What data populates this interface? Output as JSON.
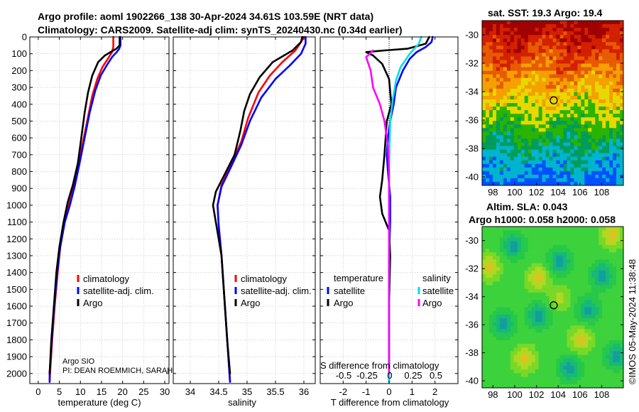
{
  "header": {
    "line1": "Argo profile: aoml 1902266_138 30-Apr-2024 34.61S 103.59E (NRT data)",
    "line2": "Climatology: CARS2009. Satellite-adj clim: synTS_20240430.nc (0.34d earlier)"
  },
  "right_titles": {
    "sst": "sat. SST: 19.3 Argo: 19.4",
    "sla1": "Altim. SLA: 0.043",
    "sla2": "Argo h1000: 0.058 h2000: 0.058"
  },
  "credit": "©IMOS 05-May-2024 11:38:48",
  "notes": {
    "pi1": "Argo SIO",
    "pi2": "PI: DEAN ROEMMICH, SARAH"
  },
  "colors": {
    "argo": "#000000",
    "clim": "#ff0000",
    "satclim": "#0000ff",
    "tsat": "#00e0e0",
    "targo": "#ff00ff",
    "grid": "#bfbfbf"
  },
  "chart_data": [
    {
      "id": "temperature",
      "type": "line",
      "xlabel": "temperature (deg C)",
      "ylabel": "",
      "xlim": [
        -2,
        31
      ],
      "ylim": [
        2060,
        0
      ],
      "xticks": [
        0,
        5,
        10,
        15,
        20,
        25,
        30
      ],
      "yticks": [
        0,
        100,
        200,
        300,
        400,
        500,
        600,
        700,
        800,
        900,
        1000,
        1100,
        1200,
        1300,
        1400,
        1500,
        1600,
        1700,
        1800,
        1900,
        2000
      ],
      "legend": [
        "climatology",
        "satellite-adj. clim.",
        "Argo"
      ],
      "series": [
        {
          "name": "climatology",
          "color": "#ff0000",
          "points": [
            [
              17.8,
              0
            ],
            [
              17.8,
              60
            ],
            [
              17.5,
              90
            ],
            [
              16.5,
              130
            ],
            [
              15.2,
              180
            ],
            [
              14.0,
              250
            ],
            [
              12.8,
              350
            ],
            [
              11.6,
              500
            ],
            [
              10.4,
              650
            ],
            [
              9.2,
              800
            ],
            [
              7.8,
              950
            ],
            [
              6.6,
              1050
            ],
            [
              5.4,
              1200
            ],
            [
              4.6,
              1400
            ],
            [
              3.9,
              1600
            ],
            [
              3.3,
              1800
            ],
            [
              2.8,
              2000
            ],
            [
              2.7,
              2050
            ]
          ]
        },
        {
          "name": "satellite-adj. clim.",
          "color": "#0000ff",
          "points": [
            [
              19.5,
              0
            ],
            [
              19.5,
              50
            ],
            [
              19.2,
              70
            ],
            [
              18.6,
              90
            ],
            [
              17.5,
              120
            ],
            [
              16.2,
              170
            ],
            [
              14.8,
              230
            ],
            [
              13.5,
              320
            ],
            [
              12.2,
              450
            ],
            [
              11.0,
              600
            ],
            [
              9.8,
              750
            ],
            [
              8.7,
              880
            ],
            [
              7.5,
              1000
            ],
            [
              6.3,
              1100
            ],
            [
              5.2,
              1250
            ],
            [
              4.5,
              1400
            ],
            [
              3.8,
              1600
            ],
            [
              3.2,
              1800
            ],
            [
              2.7,
              2000
            ],
            [
              2.7,
              2050
            ]
          ]
        },
        {
          "name": "Argo",
          "color": "#000000",
          "points": [
            [
              19.3,
              0
            ],
            [
              19.3,
              50
            ],
            [
              18.5,
              70
            ],
            [
              17.5,
              85
            ],
            [
              15.8,
              110
            ],
            [
              14.2,
              150
            ],
            [
              12.8,
              230
            ],
            [
              11.8,
              330
            ],
            [
              11.0,
              450
            ],
            [
              10.2,
              600
            ],
            [
              9.4,
              750
            ],
            [
              8.2,
              880
            ],
            [
              7.0,
              980
            ],
            [
              6.0,
              1100
            ],
            [
              5.0,
              1250
            ],
            [
              4.3,
              1400
            ],
            [
              3.7,
              1600
            ],
            [
              3.1,
              1800
            ],
            [
              2.7,
              2000
            ]
          ]
        }
      ]
    },
    {
      "id": "salinity",
      "type": "line",
      "xlabel": "salinity",
      "ylabel": "",
      "xlim": [
        33.7,
        36.2
      ],
      "ylim": [
        2060,
        0
      ],
      "xticks": [
        34,
        34.5,
        35,
        35.5,
        36
      ],
      "xticklabels": [
        "34",
        "34.5",
        "35",
        "35.5",
        "36"
      ],
      "legend": [
        "climatology",
        "satellite-adj. clim.",
        "Argo"
      ],
      "series": [
        {
          "name": "climatology",
          "color": "#ff0000",
          "points": [
            [
              36.0,
              0
            ],
            [
              35.95,
              30
            ],
            [
              35.85,
              80
            ],
            [
              35.62,
              150
            ],
            [
              35.4,
              230
            ],
            [
              35.2,
              330
            ],
            [
              35.02,
              480
            ],
            [
              34.9,
              620
            ],
            [
              34.72,
              760
            ],
            [
              34.55,
              880
            ],
            [
              34.48,
              1000
            ],
            [
              34.5,
              1120
            ],
            [
              34.55,
              1300
            ],
            [
              34.6,
              1550
            ],
            [
              34.65,
              1800
            ],
            [
              34.7,
              2050
            ]
          ]
        },
        {
          "name": "satellite-adj. clim.",
          "color": "#0000ff",
          "points": [
            [
              36.03,
              0
            ],
            [
              36.03,
              40
            ],
            [
              35.95,
              100
            ],
            [
              35.75,
              170
            ],
            [
              35.5,
              250
            ],
            [
              35.25,
              360
            ],
            [
              35.05,
              500
            ],
            [
              34.9,
              640
            ],
            [
              34.72,
              770
            ],
            [
              34.55,
              890
            ],
            [
              34.48,
              1000
            ],
            [
              34.5,
              1120
            ],
            [
              34.55,
              1300
            ],
            [
              34.6,
              1550
            ],
            [
              34.65,
              1800
            ],
            [
              34.7,
              2050
            ]
          ]
        },
        {
          "name": "Argo",
          "color": "#000000",
          "points": [
            [
              35.97,
              0
            ],
            [
              35.95,
              30
            ],
            [
              35.8,
              80
            ],
            [
              35.45,
              150
            ],
            [
              35.22,
              240
            ],
            [
              35.05,
              340
            ],
            [
              34.95,
              440
            ],
            [
              34.88,
              560
            ],
            [
              34.78,
              700
            ],
            [
              34.6,
              820
            ],
            [
              34.45,
              920
            ],
            [
              34.4,
              1000
            ],
            [
              34.45,
              1100
            ],
            [
              34.55,
              1300
            ],
            [
              34.6,
              1550
            ],
            [
              34.65,
              1800
            ],
            [
              34.7,
              2000
            ]
          ]
        }
      ]
    },
    {
      "id": "difference",
      "type": "line",
      "xlabel": "T difference from climatology",
      "ylabel": "",
      "xlim": [
        -3,
        3
      ],
      "ylim": [
        2060,
        0
      ],
      "xticks": [
        -2,
        -1,
        0,
        1,
        2
      ],
      "inner_title": "S difference from climatology",
      "inner_ticks": [
        "-0.5",
        "-0.25",
        "0",
        "0.25",
        "0.5"
      ],
      "legend_groups": [
        {
          "title": "temperature",
          "items": [
            "satellite",
            "Argo"
          ]
        },
        {
          "title": "salinity",
          "items": [
            "satellite",
            "Argo"
          ]
        }
      ],
      "series": [
        {
          "name": "temperature satellite",
          "color": "#0000ff",
          "points": [
            [
              1.9,
              0
            ],
            [
              1.85,
              30
            ],
            [
              1.6,
              60
            ],
            [
              1.2,
              90
            ],
            [
              0.9,
              130
            ],
            [
              0.6,
              200
            ],
            [
              0.3,
              300
            ],
            [
              0.2,
              400
            ],
            [
              0.05,
              500
            ],
            [
              -0.05,
              600
            ],
            [
              -0.1,
              700
            ],
            [
              -0.05,
              800
            ],
            [
              0.05,
              950
            ],
            [
              0.05,
              1100
            ],
            [
              0,
              1300
            ],
            [
              0,
              1600
            ],
            [
              0,
              1900
            ],
            [
              0,
              2050
            ]
          ]
        },
        {
          "name": "temperature Argo",
          "color": "#000000",
          "points": [
            [
              1.75,
              0
            ],
            [
              1.6,
              40
            ],
            [
              0.8,
              70
            ],
            [
              -0.2,
              80
            ],
            [
              -1.0,
              90
            ],
            [
              -0.7,
              110
            ],
            [
              -0.3,
              160
            ],
            [
              0.0,
              250
            ],
            [
              0.1,
              400
            ],
            [
              -0.1,
              500
            ],
            [
              -0.2,
              700
            ],
            [
              -0.3,
              850
            ],
            [
              -0.4,
              950
            ],
            [
              -0.3,
              1050
            ],
            [
              0,
              1150
            ],
            [
              0.05,
              1300
            ],
            [
              0,
              1600
            ],
            [
              0,
              1900
            ],
            [
              0,
              2000
            ]
          ]
        },
        {
          "name": "salinity satellite",
          "color": "#00e0e0",
          "points": [
            [
              1.4,
              0
            ],
            [
              1.3,
              40
            ],
            [
              0.9,
              100
            ],
            [
              0.5,
              180
            ],
            [
              0.3,
              260
            ],
            [
              0.15,
              380
            ],
            [
              0.05,
              500
            ],
            [
              0.02,
              650
            ],
            [
              0,
              800
            ],
            [
              0,
              1000
            ],
            [
              0,
              1300
            ],
            [
              0,
              1600
            ],
            [
              0,
              1900
            ],
            [
              0,
              2050
            ]
          ]
        },
        {
          "name": "salinity Argo",
          "color": "#ff00ff",
          "points": [
            [
              -0.7,
              80
            ],
            [
              -1.0,
              120
            ],
            [
              -0.8,
              200
            ],
            [
              -0.7,
              300
            ],
            [
              -0.4,
              400
            ],
            [
              -0.2,
              500
            ],
            [
              -0.05,
              650
            ],
            [
              0,
              800
            ],
            [
              0,
              1000
            ],
            [
              0,
              1300
            ],
            [
              0,
              1600
            ],
            [
              0,
              1900
            ],
            [
              0,
              2000
            ]
          ]
        }
      ]
    },
    {
      "id": "sst_map",
      "type": "heatmap",
      "title": "sat. SST: 19.3 Argo: 19.4",
      "xlim": [
        97,
        110
      ],
      "ylim": [
        -40.6,
        -29
      ],
      "xticks": [
        98,
        100,
        102,
        104,
        106,
        108
      ],
      "yticks": [
        -30,
        -32,
        -34,
        -36,
        -38,
        -40
      ],
      "marker": [
        103.59,
        -34.61
      ],
      "bands": [
        "#a00000",
        "#d22000",
        "#e85a00",
        "#f4a000",
        "#e8d800",
        "#2ab400",
        "#009c5a",
        "#00b4d0",
        "#0050ff"
      ]
    },
    {
      "id": "sla_map",
      "type": "heatmap",
      "title": "Altim. SLA: 0.043 / Argo h1000: 0.058 h2000: 0.058",
      "xlim": [
        97,
        110
      ],
      "ylim": [
        -40.5,
        -29
      ],
      "xticks": [
        98,
        100,
        102,
        104,
        106,
        108
      ],
      "yticks": [
        -30,
        -32,
        -34,
        -36,
        -38,
        -40
      ],
      "marker": [
        103.59,
        -34.61
      ],
      "base_color": "#3cd23c"
    }
  ]
}
